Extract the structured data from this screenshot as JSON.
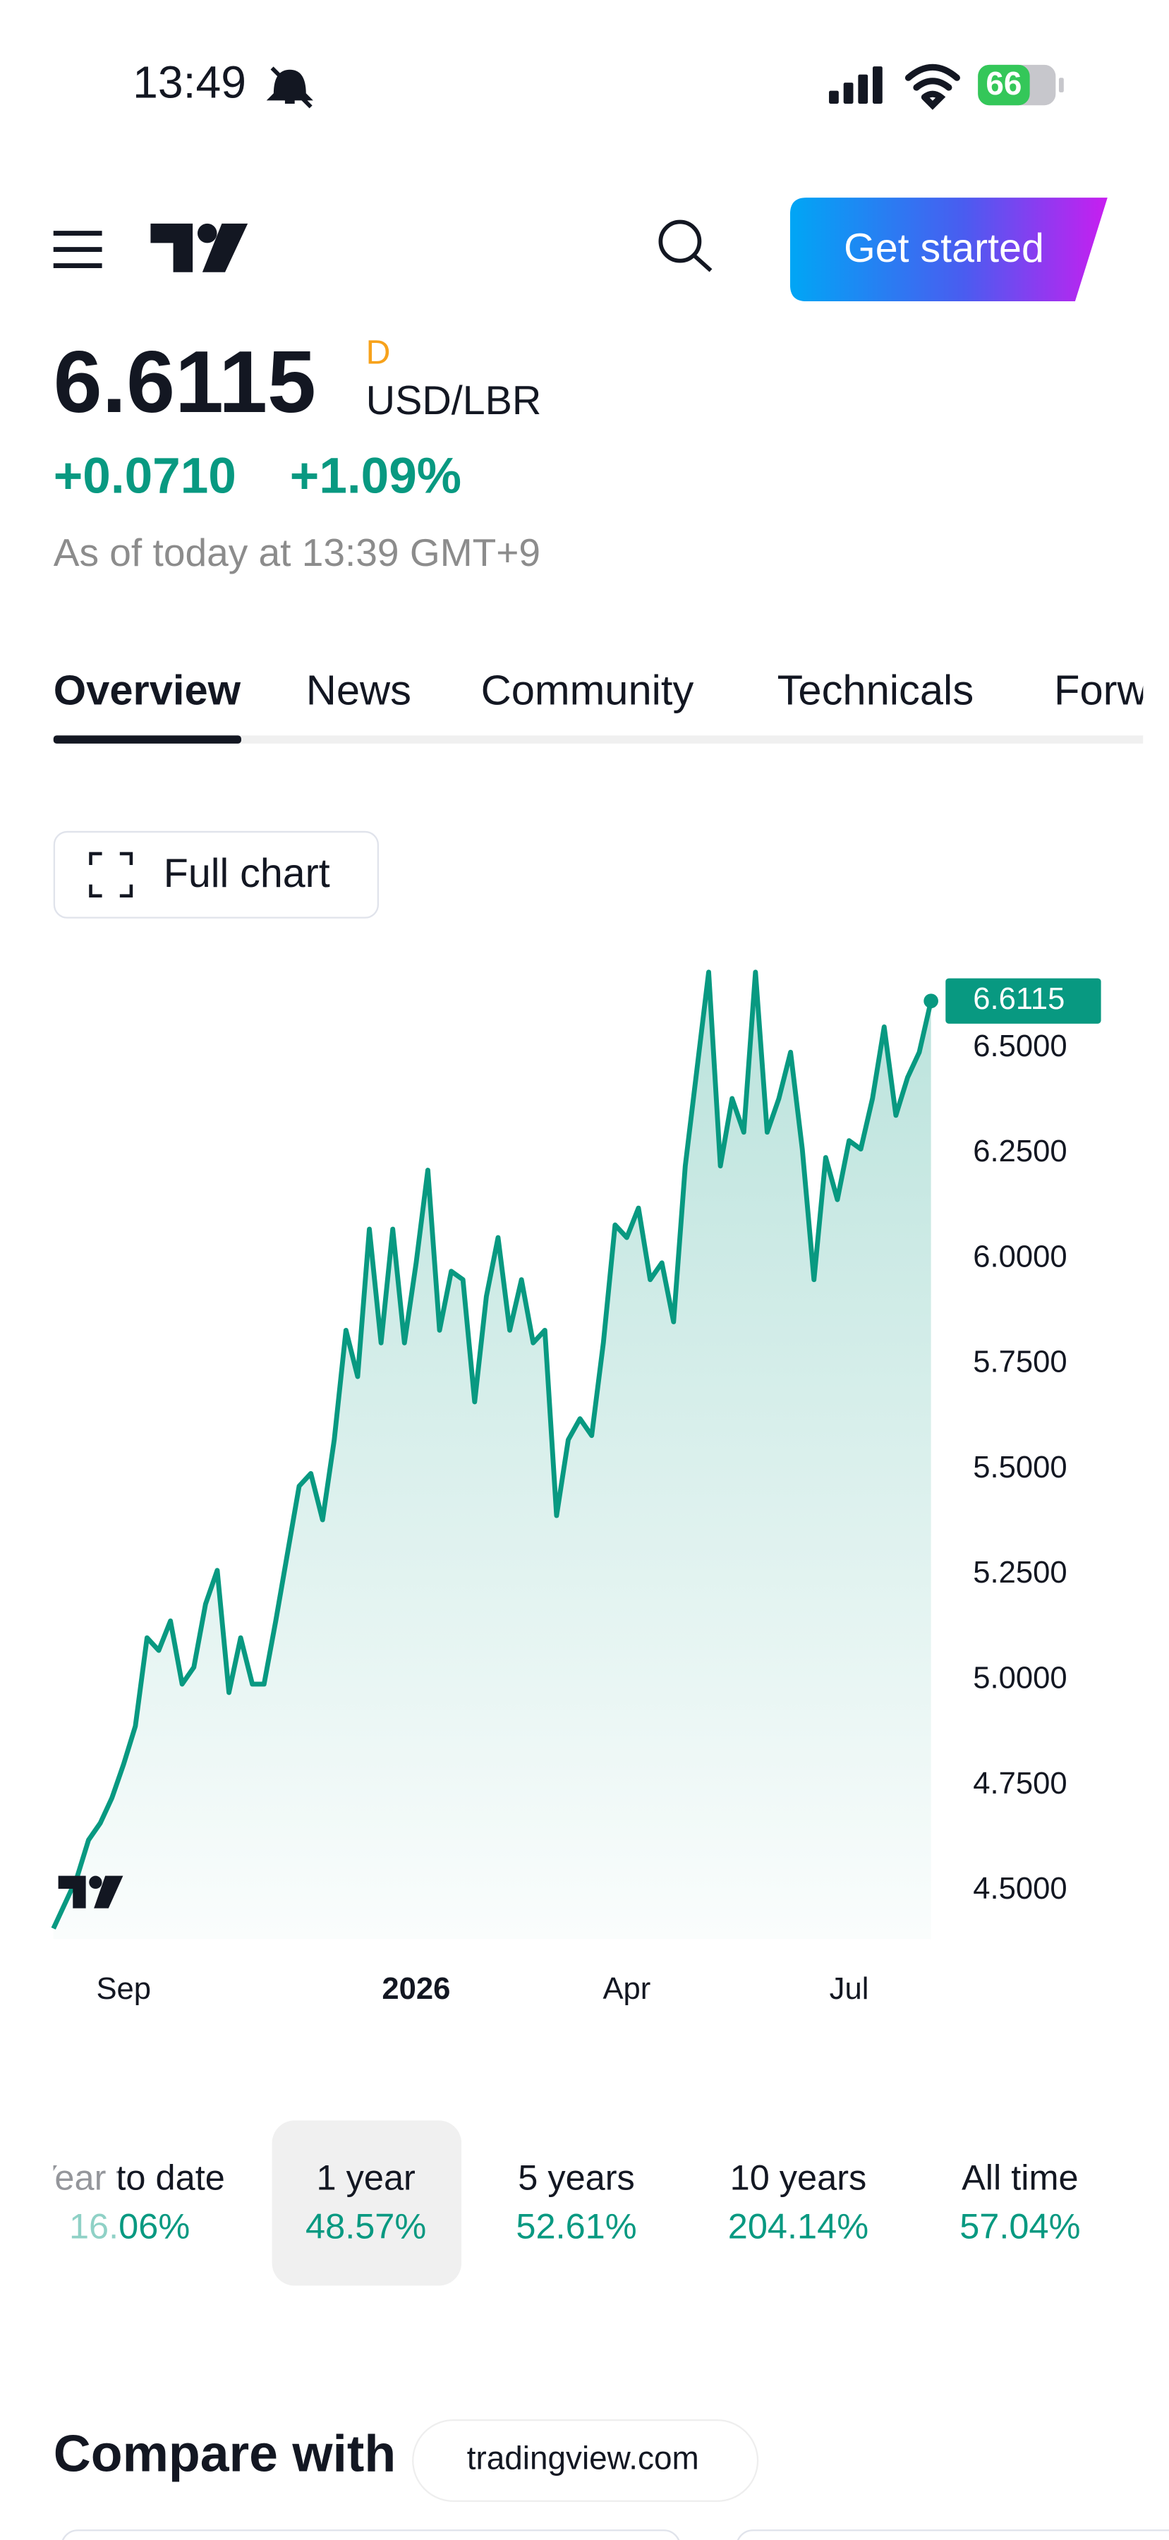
{
  "status_bar": {
    "time": "13:49",
    "battery": "66"
  },
  "header": {
    "button": "Get started"
  },
  "quote": {
    "price": "6.6115",
    "interval": "D",
    "symbol": "USD/LBR",
    "change": "+0.0710",
    "change_percent": "+1.09%",
    "as_of": "As of today at 13:39 GMT+9"
  },
  "tabs": [
    "Overview",
    "News",
    "Community",
    "Technicals",
    "Forw"
  ],
  "full_chart_button": "Full chart",
  "chart_data": {
    "type": "line",
    "categories": [
      null,
      null,
      null,
      null,
      null,
      null,
      "Sep",
      null,
      null,
      null,
      null,
      null,
      null,
      null,
      null,
      null,
      null,
      null,
      null,
      null,
      null,
      null,
      null,
      null,
      null,
      null,
      null,
      null,
      null,
      null,
      null,
      "2026",
      null,
      null,
      null,
      null,
      null,
      null,
      null,
      null,
      null,
      null,
      null,
      null,
      null,
      null,
      null,
      null,
      null,
      "Apr",
      null,
      null,
      null,
      null,
      null,
      null,
      null,
      null,
      null,
      null,
      null,
      null,
      null,
      null,
      null,
      null,
      null,
      null,
      "Jul",
      null,
      null,
      null,
      null,
      null,
      null,
      null
    ],
    "series": [
      {
        "name": "USD/LBR",
        "color": "#089981",
        "values": [
          4.41,
          4.47,
          4.53,
          4.62,
          4.66,
          4.72,
          4.8,
          4.89,
          5.1,
          5.07,
          5.14,
          4.99,
          5.03,
          5.18,
          5.26,
          4.97,
          5.1,
          4.99,
          4.99,
          5.14,
          5.3,
          5.46,
          5.49,
          5.38,
          5.57,
          5.83,
          5.72,
          6.07,
          5.8,
          6.07,
          5.8,
          5.99,
          6.21,
          5.83,
          5.97,
          5.95,
          5.66,
          5.91,
          6.05,
          5.83,
          5.95,
          5.8,
          5.83,
          5.39,
          5.57,
          5.62,
          5.58,
          5.8,
          6.08,
          6.05,
          6.12,
          5.95,
          5.99,
          5.85,
          6.22,
          6.45,
          6.68,
          6.22,
          6.38,
          6.3,
          6.68,
          6.3,
          6.38,
          6.49,
          6.26,
          5.95,
          6.24,
          6.14,
          6.28,
          6.26,
          6.38,
          6.55,
          6.34,
          6.43,
          6.49,
          6.6115
        ]
      }
    ],
    "ylim": [
      4.385,
      6.692
    ],
    "yticks": [
      {
        "value": 4.5,
        "label": "4.5000"
      },
      {
        "value": 4.75,
        "label": "4.7500"
      },
      {
        "value": 5,
        "label": "5.0000"
      },
      {
        "value": 5.25,
        "label": "5.2500"
      },
      {
        "value": 5.5,
        "label": "5.5000"
      },
      {
        "value": 5.75,
        "label": "5.7500"
      },
      {
        "value": 6,
        "label": "6.0000"
      },
      {
        "value": 6.25,
        "label": "6.2500"
      },
      {
        "value": 6.5,
        "label": "6.5000"
      }
    ],
    "grid": false
  },
  "periods": [
    {
      "label": "Year to date",
      "change": "16.06%"
    },
    {
      "label": "1 year",
      "change": "48.57%"
    },
    {
      "label": "5 years",
      "change": "52.61%"
    },
    {
      "label": "10 years",
      "change": "204.14%"
    },
    {
      "label": "All time",
      "change": "57.04%"
    }
  ],
  "compare": {
    "title": "Compare with"
  },
  "url": "tradingview.com"
}
